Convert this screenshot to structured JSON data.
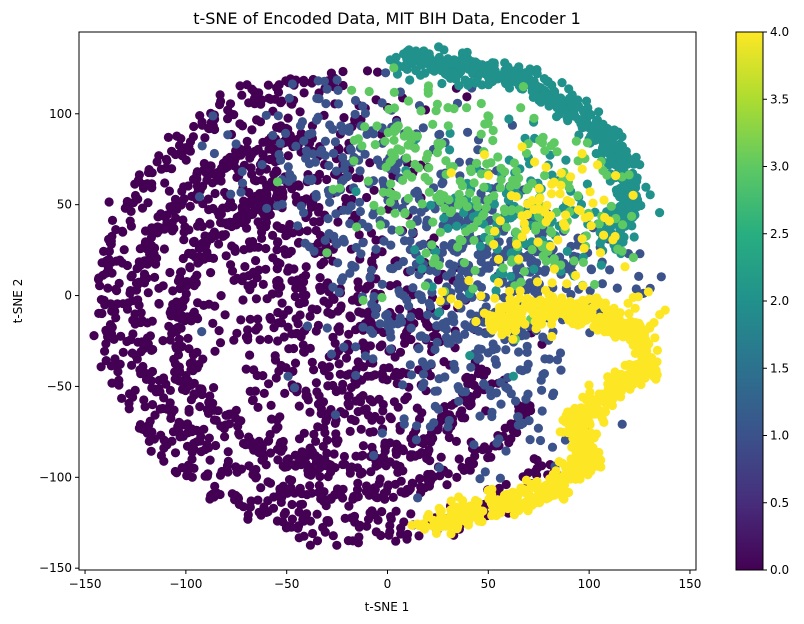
{
  "chart_data": {
    "type": "scatter",
    "title": "t-SNE of Encoded Data, MIT BIH Data, Encoder 1",
    "xlabel": "t-SNE 1",
    "ylabel": "t-SNE 2",
    "xlim": [
      -153,
      153
    ],
    "ylim": [
      -151,
      145
    ],
    "xticks": [
      -150,
      -100,
      -50,
      0,
      50,
      100,
      150
    ],
    "yticks": [
      -150,
      -100,
      -50,
      0,
      50,
      100
    ],
    "xtick_labels": [
      "−150",
      "−100",
      "−50",
      "0",
      "50",
      "100",
      "150"
    ],
    "ytick_labels": [
      "−150",
      "−100",
      "−50",
      "0",
      "50",
      "100"
    ],
    "colormap": "viridis",
    "colorbar": {
      "range": [
        0.0,
        4.0
      ],
      "ticks": [
        0.0,
        0.5,
        1.0,
        1.5,
        2.0,
        2.5,
        3.0,
        3.5,
        4.0
      ],
      "tick_labels": [
        "0.0",
        "0.5",
        "1.0",
        "1.5",
        "2.0",
        "2.5",
        "3.0",
        "3.5",
        "4.0"
      ]
    },
    "colors": {
      "class_0": "#440154",
      "class_1": "#3b528b",
      "class_2": "#21918c",
      "class_3": "#5ec962",
      "class_4": "#fde725"
    },
    "grid": false,
    "clusters": [
      {
        "class": 0,
        "shape": "ring",
        "center": [
          -10,
          -5
        ],
        "rx": 130,
        "ry": 125,
        "angle_range": [
          95,
          315
        ],
        "thickness": 10
      },
      {
        "class": 0,
        "shape": "ring",
        "center": [
          -20,
          -10
        ],
        "rx": 105,
        "ry": 100,
        "angle_range": [
          100,
          330
        ],
        "thickness": 8
      },
      {
        "class": 0,
        "shape": "ring",
        "center": [
          -25,
          -15
        ],
        "rx": 80,
        "ry": 78,
        "angle_range": [
          110,
          340
        ],
        "thickness": 10
      },
      {
        "class": 0,
        "shape": "blob",
        "center": [
          -40,
          10
        ],
        "sx": 40,
        "sy": 55
      },
      {
        "class": 0,
        "shape": "blob",
        "center": [
          -10,
          -60
        ],
        "sx": 30,
        "sy": 40
      },
      {
        "class": 0,
        "shape": "blob",
        "center": [
          -60,
          60
        ],
        "sx": 25,
        "sy": 30
      },
      {
        "class": 1,
        "shape": "blob",
        "center": [
          20,
          20
        ],
        "sx": 35,
        "sy": 40
      },
      {
        "class": 1,
        "shape": "blob",
        "center": [
          50,
          -30
        ],
        "sx": 25,
        "sy": 35
      },
      {
        "class": 1,
        "shape": "blob",
        "center": [
          -30,
          80
        ],
        "sx": 25,
        "sy": 20
      },
      {
        "class": 1,
        "shape": "blob",
        "center": [
          95,
          15
        ],
        "sx": 25,
        "sy": 12
      },
      {
        "class": 2,
        "shape": "band",
        "points": [
          [
            5,
            130
          ],
          [
            40,
            125
          ],
          [
            70,
            118
          ],
          [
            95,
            100
          ],
          [
            110,
            85
          ],
          [
            120,
            70
          ],
          [
            120,
            50
          ],
          [
            110,
            30
          ]
        ],
        "thickness": 8
      },
      {
        "class": 2,
        "shape": "blob",
        "center": [
          60,
          45
        ],
        "sx": 22,
        "sy": 25
      },
      {
        "class": 3,
        "shape": "blob",
        "center": [
          75,
          45
        ],
        "sx": 25,
        "sy": 25
      },
      {
        "class": 3,
        "shape": "blob",
        "center": [
          20,
          70
        ],
        "sx": 25,
        "sy": 25
      },
      {
        "class": 4,
        "shape": "band",
        "points": [
          [
            20,
            -125
          ],
          [
            45,
            -118
          ],
          [
            80,
            -108
          ],
          [
            100,
            -90
          ],
          [
            92,
            -70
          ],
          [
            110,
            -55
          ],
          [
            128,
            -40
          ],
          [
            125,
            -20
          ],
          [
            100,
            -10
          ],
          [
            70,
            -8
          ],
          [
            50,
            -15
          ]
        ],
        "thickness": 7
      },
      {
        "class": 4,
        "shape": "blob",
        "center": [
          85,
          -5
        ],
        "sx": 30,
        "sy": 8
      },
      {
        "class": 4,
        "shape": "blob",
        "center": [
          80,
          50
        ],
        "sx": 18,
        "sy": 18
      }
    ]
  }
}
